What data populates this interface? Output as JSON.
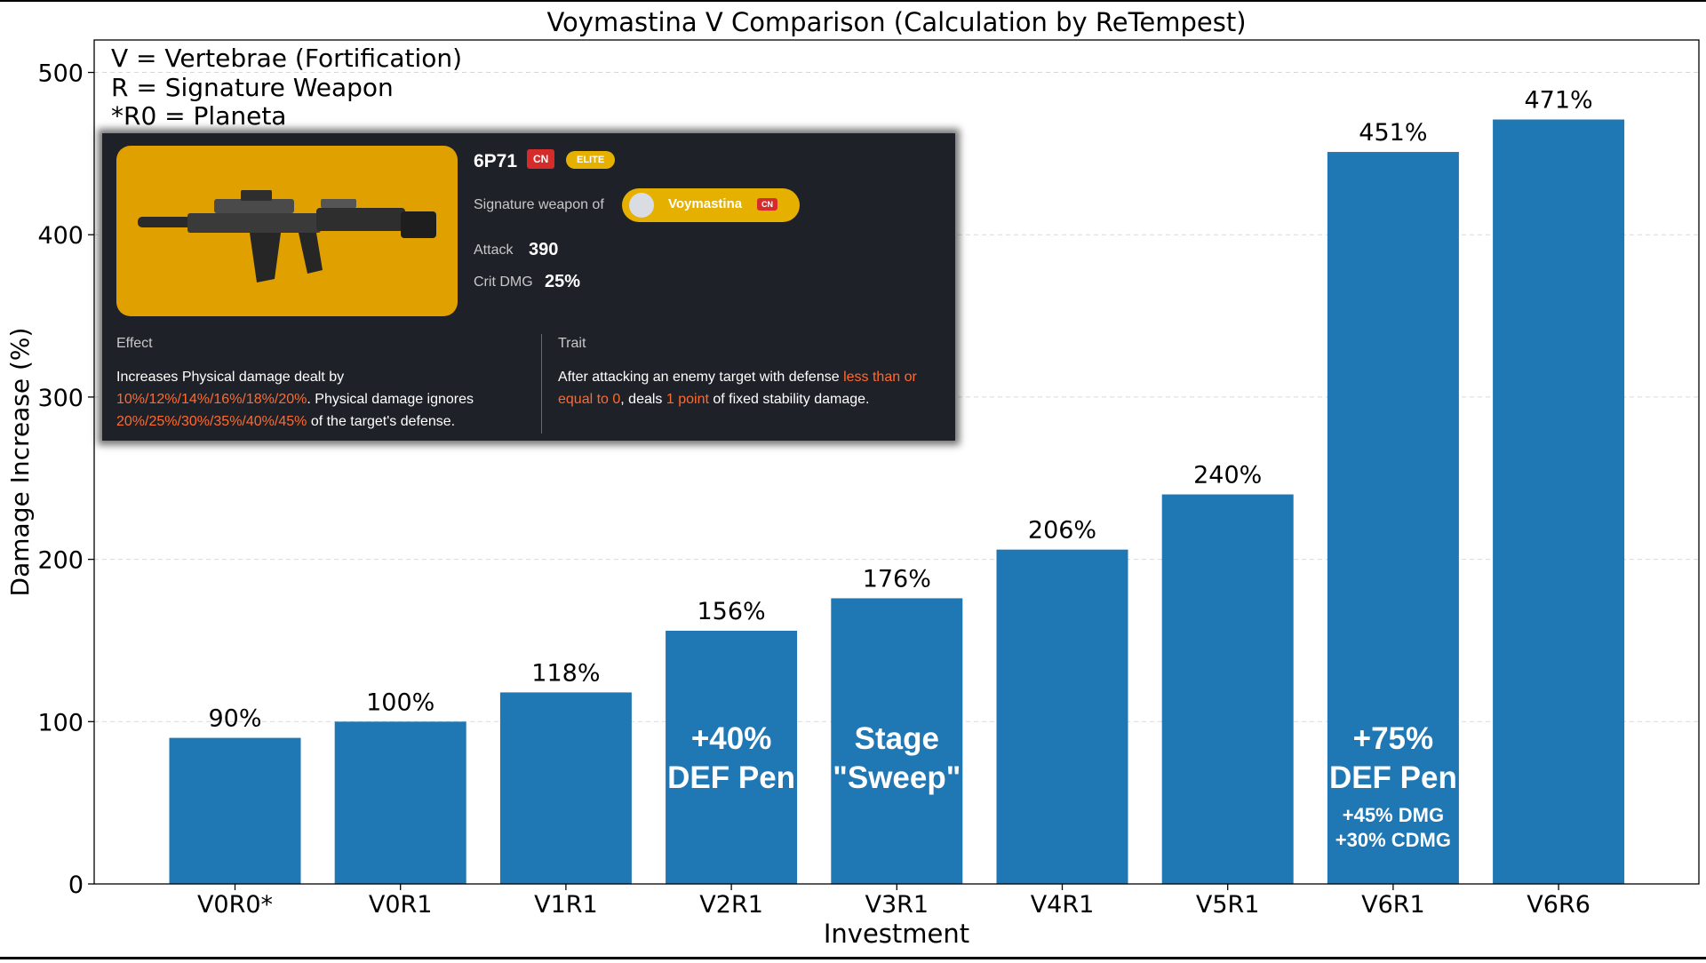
{
  "chart_data": {
    "type": "bar",
    "title": "Voymastina V Comparison (Calculation by ReTempest)",
    "xlabel": "Investment",
    "ylabel": "Damage Increase (%)",
    "categories": [
      "V0R0*",
      "V0R1",
      "V1R1",
      "V2R1",
      "V3R1",
      "V4R1",
      "V5R1",
      "V6R1",
      "V6R6"
    ],
    "values": [
      90,
      100,
      118,
      156,
      176,
      206,
      240,
      451,
      471
    ],
    "value_labels": [
      "90%",
      "100%",
      "118%",
      "156%",
      "176%",
      "206%",
      "240%",
      "451%",
      "471%"
    ],
    "ylim": [
      0,
      520
    ],
    "yticks": [
      0,
      100,
      200,
      300,
      400,
      500
    ],
    "grid": true,
    "bar_color": "#1f77b4",
    "legend_notes": [
      "V = Vertebrae (Fortification)",
      "R = Signature Weapon",
      "*R0 = Planeta"
    ],
    "bar_annotations": [
      {
        "category": "V2R1",
        "lines": [
          "+40%",
          "DEF Pen"
        ]
      },
      {
        "category": "V3R1",
        "lines": [
          "Stage",
          "\"Sweep\""
        ]
      },
      {
        "category": "V6R1",
        "lines": [
          "+75%",
          "DEF Pen"
        ],
        "sub_lines": [
          "+45% DMG",
          "+30% CDMG"
        ]
      }
    ]
  },
  "weapon_card": {
    "name": "6P71",
    "badge_region": "CN",
    "badge_rarity": "ELITE",
    "signature_label": "Signature weapon of",
    "signature_name": "Voymastina",
    "signature_badge": "CN",
    "attack_label": "Attack",
    "attack_value": "390",
    "crit_label": "Crit DMG",
    "crit_value": "25%",
    "effect_header": "Effect",
    "effect_pre": "Increases Physical damage dealt by ",
    "effect_hl1": "10%/12%/14%/16%/18%/20%",
    "effect_mid": ". Physical damage ignores ",
    "effect_hl2": "20%/25%/30%/35%/40%/45%",
    "effect_post": " of the target's defense.",
    "trait_header": "Trait",
    "trait_pre": "After attacking an enemy target with defense ",
    "trait_hl1": "less than or equal to 0",
    "trait_mid": ", deals ",
    "trait_hl2": "1 point",
    "trait_post": " of fixed stability damage.",
    "highlight_color": "#ff6a2e",
    "image_bg": "#e0a000",
    "image_subject": "rifle-image"
  }
}
